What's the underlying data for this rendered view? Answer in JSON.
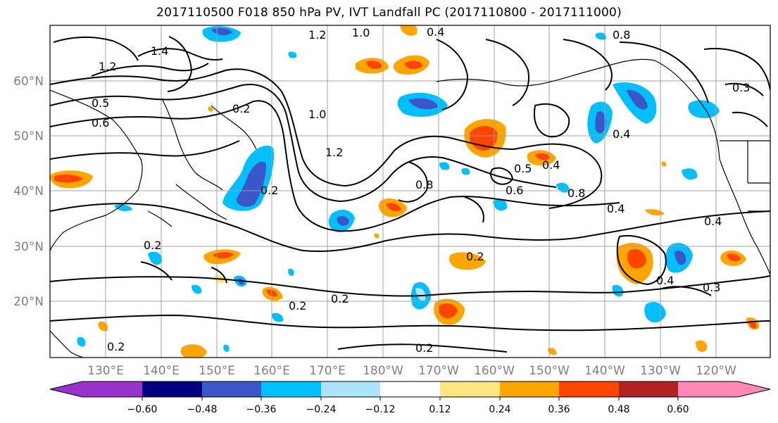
{
  "title": "2017110500 F018 850 hPa PV, IVT Landfall PC (2017110800 - 2017111000)",
  "lat_labels": [
    "60°N",
    "50°N",
    "40°N",
    "30°N",
    "20°N"
  ],
  "lon_labels": [
    "130°E",
    "140°E",
    "150°E",
    "160°E",
    "170°E",
    "180°W",
    "170°W",
    "160°W",
    "150°W",
    "140°W",
    "130°W",
    "120°W"
  ],
  "contour_labels": [
    "1.2",
    "1.0",
    "0.4",
    "0.8",
    "0.3",
    "1.4",
    "1.2",
    "0.5",
    "0.2",
    "1.0",
    "1.2",
    "0.6",
    "0.2",
    "0.8",
    "0.5",
    "0.4",
    "0.8",
    "0.4",
    "0.4",
    "0.2",
    "0.2",
    "0.2",
    "0.2",
    "0.2",
    "0.4",
    "0.3",
    "0.2",
    "0.6",
    "0.4"
  ],
  "colorbar": {
    "ticks": [
      "−0.60",
      "−0.48",
      "−0.36",
      "−0.24",
      "−0.12",
      "0.12",
      "0.24",
      "0.36",
      "0.48",
      "0.60"
    ],
    "colors": [
      "#9932cc",
      "#000080",
      "#3a56c8",
      "#00bfff",
      "#aee4fb",
      "#ffffff",
      "#ffe680",
      "#ffa500",
      "#ff4500",
      "#b22222",
      "#ff88b4"
    ]
  }
}
